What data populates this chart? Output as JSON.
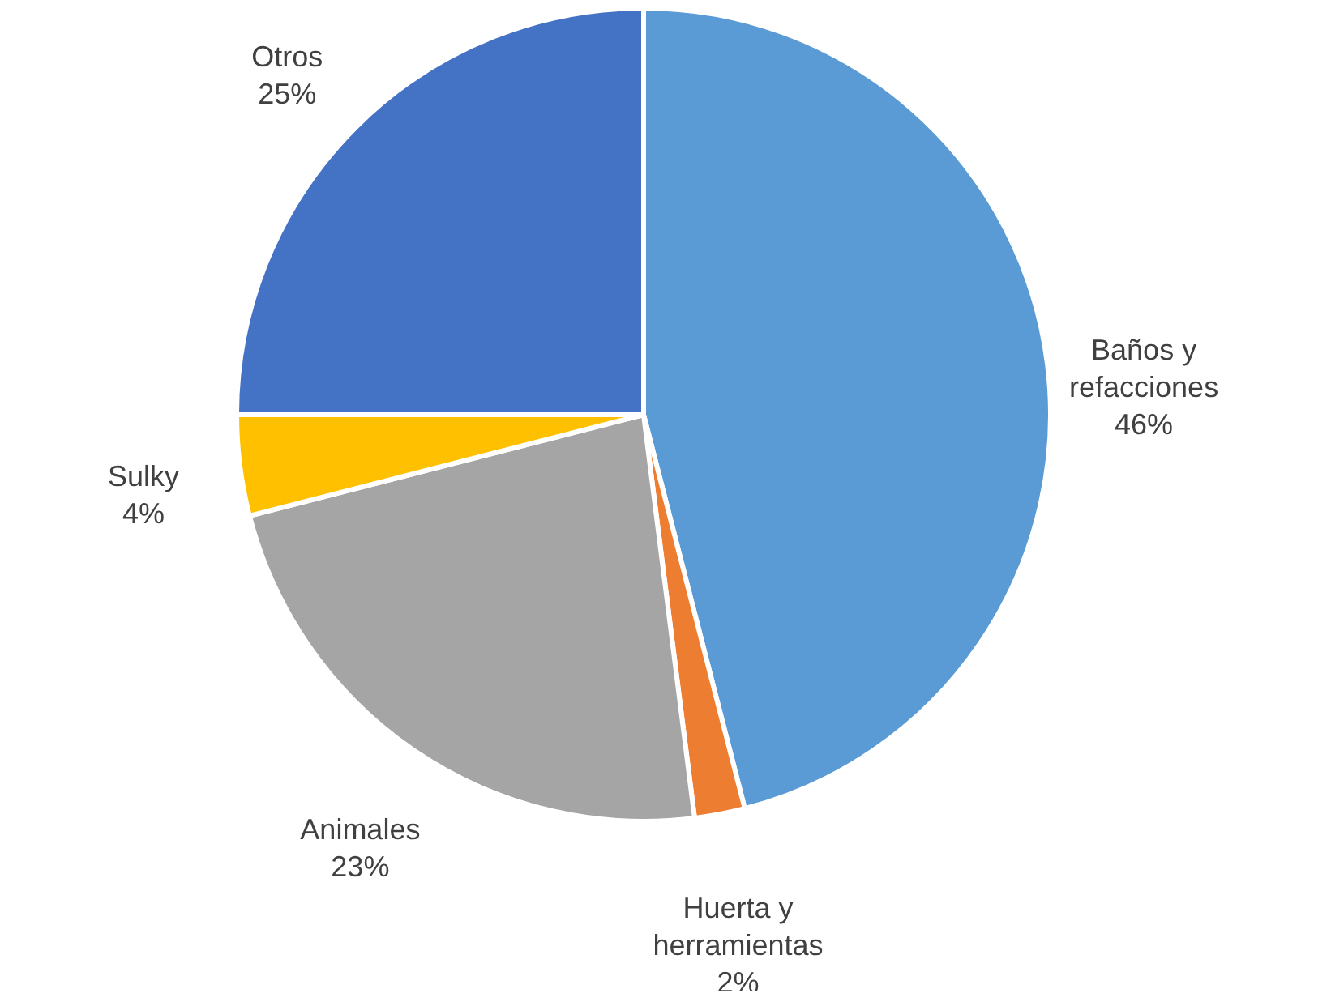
{
  "chart_data": {
    "type": "pie",
    "categories": [
      "Baños y refacciones",
      "Huerta y herramientas",
      "Animales",
      "Sulky",
      "Otros"
    ],
    "values": [
      46,
      2,
      23,
      4,
      25
    ],
    "value_labels": [
      "46%",
      "2%",
      "23%",
      "4%",
      "25%"
    ],
    "colors": [
      "#5b9bd5",
      "#ed7d31",
      "#a5a5a5",
      "#ffc000",
      "#4472c4"
    ],
    "legend": false
  }
}
